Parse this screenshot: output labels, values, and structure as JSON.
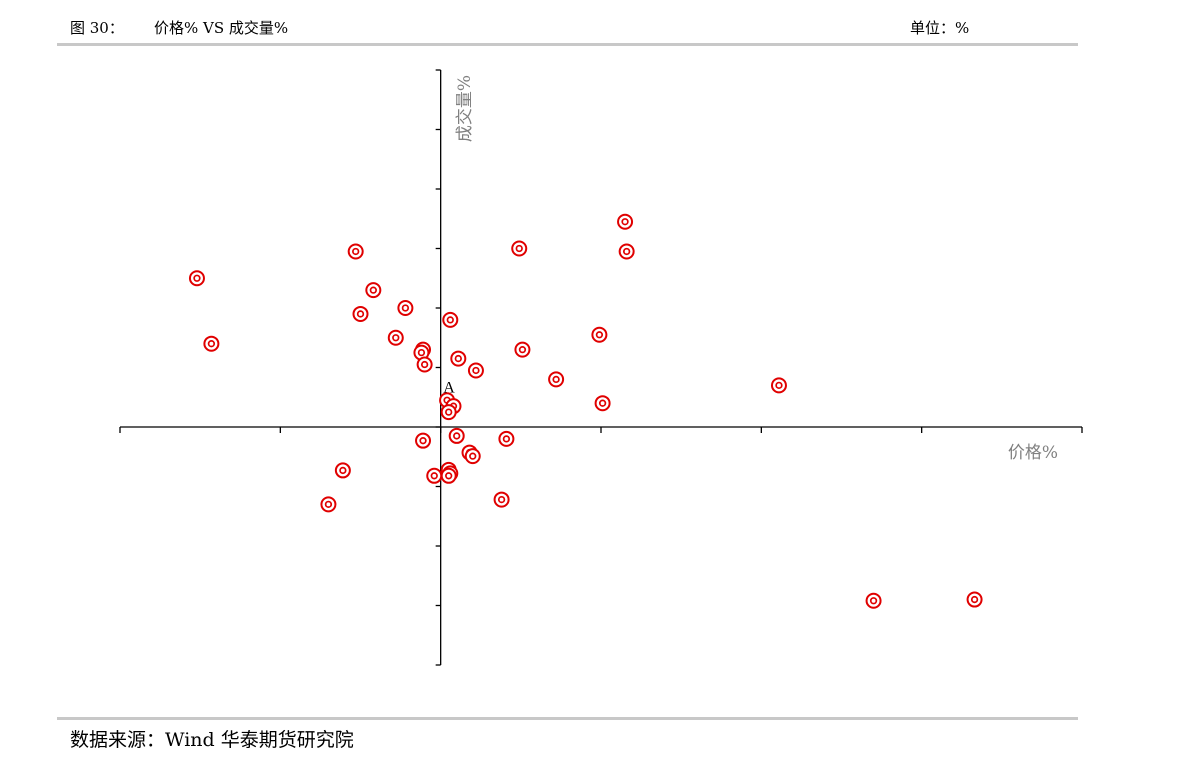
{
  "header": {
    "figure_number": "图 30：",
    "title": "价格% VS 成交量%",
    "unit": "单位：%"
  },
  "footer": {
    "source": "数据来源：Wind 华泰期货研究院"
  },
  "colors": {
    "marker": "#e00000",
    "axis": "#000000",
    "axis_title": "#808080",
    "rule": "#c8c8c8"
  },
  "chart_data": {
    "type": "scatter",
    "xlabel": "价格%",
    "ylabel": "成交量%",
    "xlim": [
      -20,
      40
    ],
    "ylim": [
      -4,
      6
    ],
    "x_ticks": [
      -20,
      -10,
      0,
      10,
      20,
      30,
      40
    ],
    "y_ticks": [
      -4,
      -3,
      -2,
      -1,
      0,
      1,
      2,
      3,
      4,
      5,
      6
    ],
    "grid": false,
    "legend": "none",
    "annotations": [
      {
        "text": "A",
        "x": 0.4,
        "y": 0.5
      }
    ],
    "points": [
      {
        "x": -15.2,
        "y": 2.5
      },
      {
        "x": -14.3,
        "y": 1.4
      },
      {
        "x": -5.3,
        "y": 2.95
      },
      {
        "x": -4.2,
        "y": 2.3
      },
      {
        "x": -5.0,
        "y": 1.9
      },
      {
        "x": -2.2,
        "y": 2.0
      },
      {
        "x": -2.8,
        "y": 1.5
      },
      {
        "x": -1.1,
        "y": 1.3
      },
      {
        "x": -1.2,
        "y": 1.25
      },
      {
        "x": -1.0,
        "y": 1.05
      },
      {
        "x": 0.6,
        "y": 1.8
      },
      {
        "x": 1.1,
        "y": 1.15
      },
      {
        "x": 2.2,
        "y": 0.95
      },
      {
        "x": 4.9,
        "y": 3.0
      },
      {
        "x": 5.1,
        "y": 1.3
      },
      {
        "x": 7.2,
        "y": 0.8
      },
      {
        "x": 9.9,
        "y": 1.55
      },
      {
        "x": 10.1,
        "y": 0.4
      },
      {
        "x": 11.5,
        "y": 3.45
      },
      {
        "x": 11.6,
        "y": 2.95
      },
      {
        "x": 21.1,
        "y": 0.7
      },
      {
        "x": 0.4,
        "y": 0.45
      },
      {
        "x": 0.8,
        "y": 0.35
      },
      {
        "x": 0.5,
        "y": 0.25
      },
      {
        "x": 1.0,
        "y": -0.15
      },
      {
        "x": -1.1,
        "y": -0.23
      },
      {
        "x": 1.8,
        "y": -0.43
      },
      {
        "x": 2.0,
        "y": -0.49
      },
      {
        "x": 4.1,
        "y": -0.2
      },
      {
        "x": -6.1,
        "y": -0.73
      },
      {
        "x": -7.0,
        "y": -1.3
      },
      {
        "x": -0.4,
        "y": -0.82
      },
      {
        "x": 0.5,
        "y": -0.72
      },
      {
        "x": 0.6,
        "y": -0.78
      },
      {
        "x": 0.5,
        "y": -0.82
      },
      {
        "x": 3.8,
        "y": -1.22
      },
      {
        "x": 27.0,
        "y": -2.92
      },
      {
        "x": 33.3,
        "y": -2.9
      }
    ]
  }
}
